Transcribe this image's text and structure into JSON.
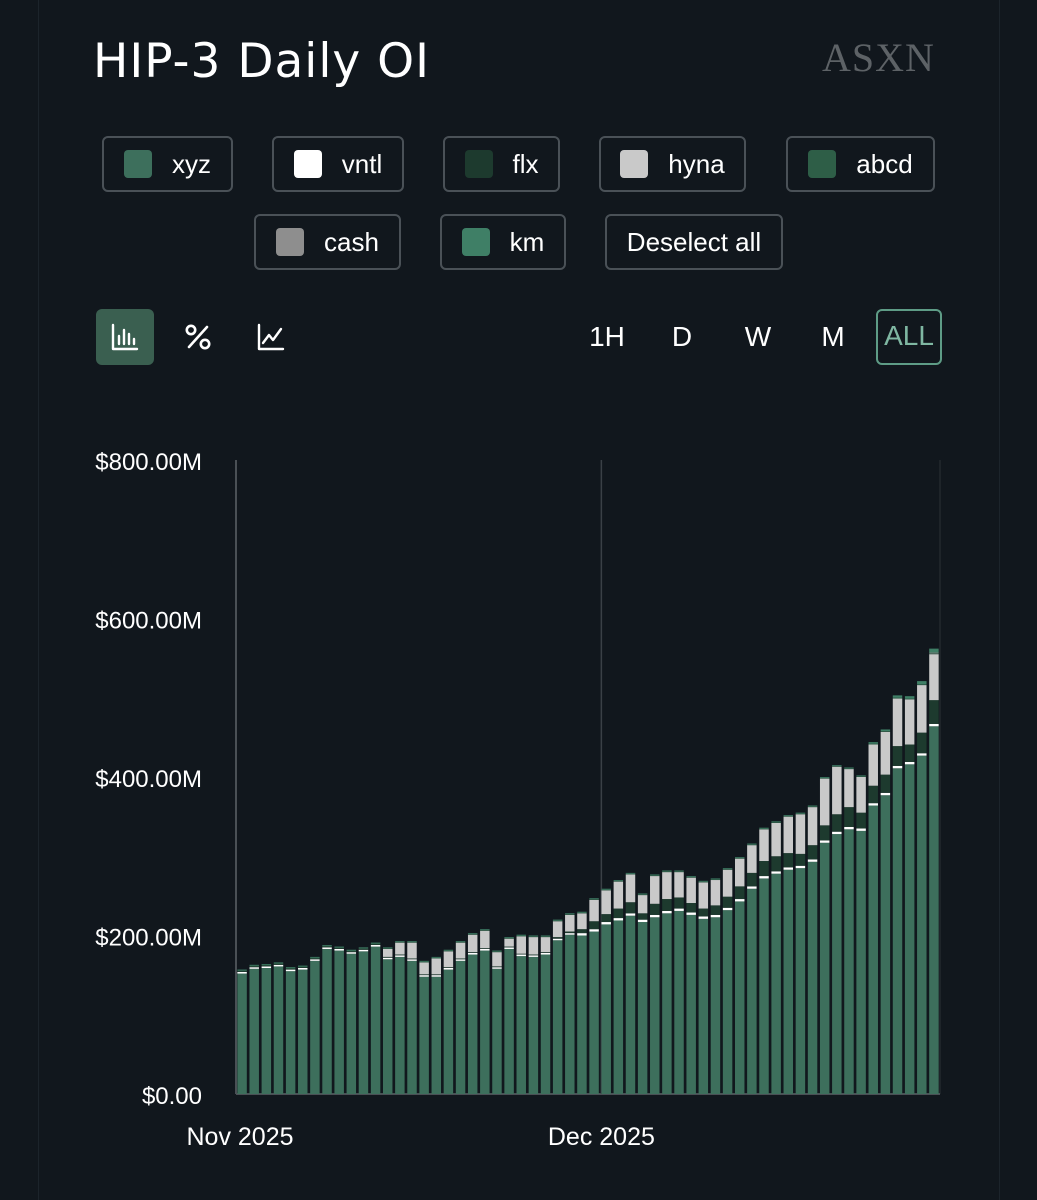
{
  "header": {
    "title": "HIP-3 Daily OI",
    "brand": "ASXN"
  },
  "legend": {
    "items": [
      {
        "label": "xyz",
        "color": "#3d6f5c"
      },
      {
        "label": "vntl",
        "color": "#ffffff"
      },
      {
        "label": "flx",
        "color": "#1d3a2e"
      },
      {
        "label": "hyna",
        "color": "#c9c9c9"
      },
      {
        "label": "abcd",
        "color": "#2e5e47"
      },
      {
        "label": "cash",
        "color": "#8e8e8e"
      },
      {
        "label": "km",
        "color": "#3f7f66"
      }
    ],
    "deselect_label": "Deselect all"
  },
  "toolbar": {
    "chart_types": [
      {
        "name": "bar-chart-icon",
        "active": true
      },
      {
        "name": "percent-icon",
        "active": false
      },
      {
        "name": "line-chart-icon",
        "active": false
      }
    ],
    "ranges": [
      {
        "label": "1H",
        "active": false
      },
      {
        "label": "D",
        "active": false
      },
      {
        "label": "W",
        "active": false
      },
      {
        "label": "M",
        "active": false
      },
      {
        "label": "ALL",
        "active": true
      }
    ]
  },
  "chart_data": {
    "type": "bar",
    "stacked": true,
    "ylim": [
      0,
      800
    ],
    "unit": "M",
    "ytick_labels": [
      "$0.00",
      "$200.00M",
      "$400.00M",
      "$600.00M",
      "$800.00M"
    ],
    "yticks": [
      0,
      200,
      400,
      600,
      800
    ],
    "xtick_labels": [
      {
        "label": "Nov 2025",
        "index": 0
      },
      {
        "label": "Dec 2025",
        "index": 30
      }
    ],
    "x": [
      "Nov 1",
      "Nov 2",
      "Nov 3",
      "Nov 4",
      "Nov 5",
      "Nov 6",
      "Nov 7",
      "Nov 8",
      "Nov 9",
      "Nov 10",
      "Nov 11",
      "Nov 12",
      "Nov 13",
      "Nov 14",
      "Nov 15",
      "Nov 16",
      "Nov 17",
      "Nov 18",
      "Nov 19",
      "Nov 20",
      "Nov 21",
      "Nov 22",
      "Nov 23",
      "Nov 24",
      "Nov 25",
      "Nov 26",
      "Nov 27",
      "Nov 28",
      "Nov 29",
      "Nov 30",
      "Dec 1",
      "Dec 2",
      "Dec 3",
      "Dec 4",
      "Dec 5",
      "Dec 6",
      "Dec 7",
      "Dec 8",
      "Dec 9",
      "Dec 10",
      "Dec 11",
      "Dec 12",
      "Dec 13",
      "Dec 14",
      "Dec 15",
      "Dec 16",
      "Dec 17",
      "Dec 18",
      "Dec 19",
      "Dec 20",
      "Dec 21",
      "Dec 22",
      "Dec 23",
      "Dec 24",
      "Dec 25",
      "Dec 26",
      "Dec 27",
      "Dec 28"
    ],
    "series": [
      {
        "name": "xyz",
        "color": "#3d6f5c",
        "values": [
          152,
          158,
          159,
          161,
          155,
          157,
          168,
          183,
          181,
          177,
          180,
          186,
          170,
          173,
          168,
          148,
          148,
          157,
          168,
          176,
          181,
          158,
          183,
          174,
          173,
          176,
          194,
          201,
          200,
          205,
          214,
          219,
          225,
          217,
          223,
          228,
          231,
          226,
          221,
          223,
          232,
          243,
          259,
          272,
          278,
          283,
          285,
          293,
          317,
          328,
          334,
          332,
          364,
          377,
          411,
          416,
          427,
          464
        ]
      },
      {
        "name": "vntl",
        "color": "#ffffff",
        "values": [
          2,
          2,
          2,
          2,
          2,
          2,
          2,
          2,
          2,
          2,
          2,
          2,
          2,
          2,
          2,
          2,
          2,
          2,
          2,
          2,
          2,
          2,
          2,
          2,
          2,
          2,
          2,
          2,
          3,
          3,
          3,
          3,
          3,
          3,
          3,
          3,
          3,
          3,
          3,
          3,
          3,
          3,
          3,
          3,
          3,
          3,
          3,
          3,
          3,
          3,
          3,
          3,
          3,
          3,
          3,
          3,
          3,
          3
        ]
      },
      {
        "name": "flx",
        "color": "#1d3a2e",
        "values": [
          1,
          1,
          1,
          1,
          1,
          1,
          1,
          1,
          1,
          1,
          1,
          1,
          1,
          1,
          1,
          1,
          1,
          1,
          1,
          1,
          1,
          1,
          1,
          1,
          1,
          1,
          2,
          2,
          5,
          10,
          10,
          12,
          14,
          8,
          14,
          15,
          14,
          12,
          10,
          12,
          14,
          16,
          17,
          19,
          19,
          18,
          15,
          18,
          19,
          22,
          25,
          20,
          22,
          23,
          25,
          22,
          26,
          30
        ]
      },
      {
        "name": "hyna",
        "color": "#c9c9c9",
        "values": [
          0,
          0,
          0,
          0,
          0,
          0,
          0,
          0,
          0,
          0,
          0,
          0,
          10,
          15,
          20,
          15,
          20,
          20,
          20,
          22,
          22,
          18,
          10,
          22,
          22,
          19,
          20,
          21,
          20,
          27,
          30,
          34,
          35,
          23,
          35,
          34,
          32,
          32,
          33,
          32,
          34,
          35,
          35,
          40,
          42,
          46,
          50,
          48,
          59,
          60,
          48,
          45,
          52,
          54,
          60,
          57,
          60,
          58
        ]
      },
      {
        "name": "abcd",
        "color": "#2e5e47",
        "values": [
          1,
          1,
          1,
          1,
          1,
          1,
          1,
          1,
          1,
          1,
          1,
          1,
          1,
          1,
          1,
          1,
          1,
          1,
          1,
          1,
          1,
          1,
          1,
          1,
          1,
          1,
          1,
          1,
          1,
          1,
          1,
          1,
          1,
          1,
          1,
          1,
          1,
          1,
          1,
          1,
          1,
          1,
          1,
          1,
          1,
          1,
          1,
          1,
          1,
          1,
          1,
          1,
          1,
          1,
          1,
          1,
          1,
          1
        ]
      },
      {
        "name": "cash",
        "color": "#8e8e8e",
        "values": [
          0,
          0,
          0,
          0,
          0,
          0,
          0,
          0,
          0,
          0,
          0,
          0,
          0,
          0,
          0,
          0,
          0,
          0,
          0,
          0,
          0,
          0,
          0,
          0,
          0,
          0,
          0,
          0,
          0,
          0,
          0,
          0,
          0,
          0,
          0,
          0,
          0,
          0,
          0,
          0,
          0,
          0,
          0,
          0,
          0,
          0,
          0,
          0,
          0,
          0,
          0,
          0,
          0,
          0,
          0,
          0,
          0,
          1
        ]
      },
      {
        "name": "km",
        "color": "#3f7f66",
        "values": [
          1,
          1,
          1,
          1,
          1,
          1,
          1,
          1,
          1,
          1,
          1,
          1,
          1,
          1,
          1,
          1,
          1,
          1,
          1,
          1,
          1,
          1,
          1,
          1,
          1,
          1,
          1,
          1,
          1,
          1,
          1,
          1,
          1,
          1,
          1,
          1,
          1,
          1,
          1,
          1,
          1,
          1,
          1,
          1,
          1,
          1,
          1,
          1,
          1,
          1,
          1,
          1,
          2,
          2,
          3,
          3,
          4,
          5
        ]
      }
    ],
    "grid": false,
    "legend_position": "top"
  }
}
